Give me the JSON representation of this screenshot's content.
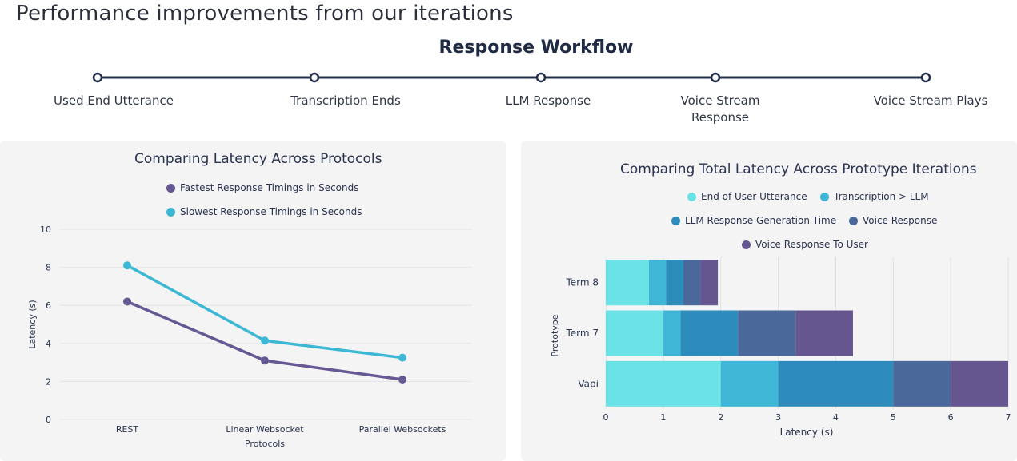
{
  "page": {
    "title": "Performance improvements from our iterations"
  },
  "workflow": {
    "title": "Response Workflow",
    "steps": [
      {
        "label": "Used End Utterance"
      },
      {
        "label": "Transcription Ends"
      },
      {
        "label": "LLM Response"
      },
      {
        "label": "Voice Stream Response"
      },
      {
        "label": "Voice Stream Plays"
      }
    ]
  },
  "colors": {
    "line": "#22304e",
    "fastest": "#655893",
    "slowest": "#3db8d4",
    "seg1": "#6be2e6",
    "seg2": "#3fb6d6",
    "seg3": "#2d8cbb",
    "seg4": "#4a6899",
    "seg5": "#66568f"
  },
  "chart_data": [
    {
      "type": "line",
      "title": "Comparing Latency Across Protocols",
      "xlabel": "Protocols",
      "ylabel": "Latency (s)",
      "categories": [
        "REST",
        "Linear Websocket",
        "Parallel Websockets"
      ],
      "ylim": [
        0,
        10
      ],
      "yticks": [
        0,
        2,
        4,
        6,
        8,
        10
      ],
      "grid": true,
      "legend_position": "top",
      "series": [
        {
          "name": "Fastest Response Timings in Seconds",
          "values": [
            6.2,
            3.1,
            2.1
          ]
        },
        {
          "name": "Slowest Response Timings in Seconds",
          "values": [
            8.1,
            4.15,
            3.25
          ]
        }
      ]
    },
    {
      "type": "bar",
      "orientation": "horizontal",
      "stacked": true,
      "title": "Comparing Total Latency Across Prototype Iterations",
      "xlabel": "Latency (s)",
      "ylabel": "Prototype",
      "categories": [
        "Term 8",
        "Term 7",
        "Vapi"
      ],
      "xlim": [
        0,
        7
      ],
      "xticks": [
        0,
        1,
        2,
        3,
        4,
        5,
        6,
        7
      ],
      "grid": true,
      "legend_position": "top",
      "series": [
        {
          "name": "End of User Utterance",
          "values": [
            0.75,
            1.0,
            2.0
          ]
        },
        {
          "name": "Transcription > LLM",
          "values": [
            0.3,
            0.3,
            1.0
          ]
        },
        {
          "name": "LLM Response Generation Time",
          "values": [
            0.3,
            1.0,
            2.0
          ]
        },
        {
          "name": "Voice Response",
          "values": [
            0.3,
            1.0,
            1.0
          ]
        },
        {
          "name": "Voice Response To User",
          "values": [
            0.3,
            1.0,
            1.0
          ]
        }
      ]
    }
  ]
}
